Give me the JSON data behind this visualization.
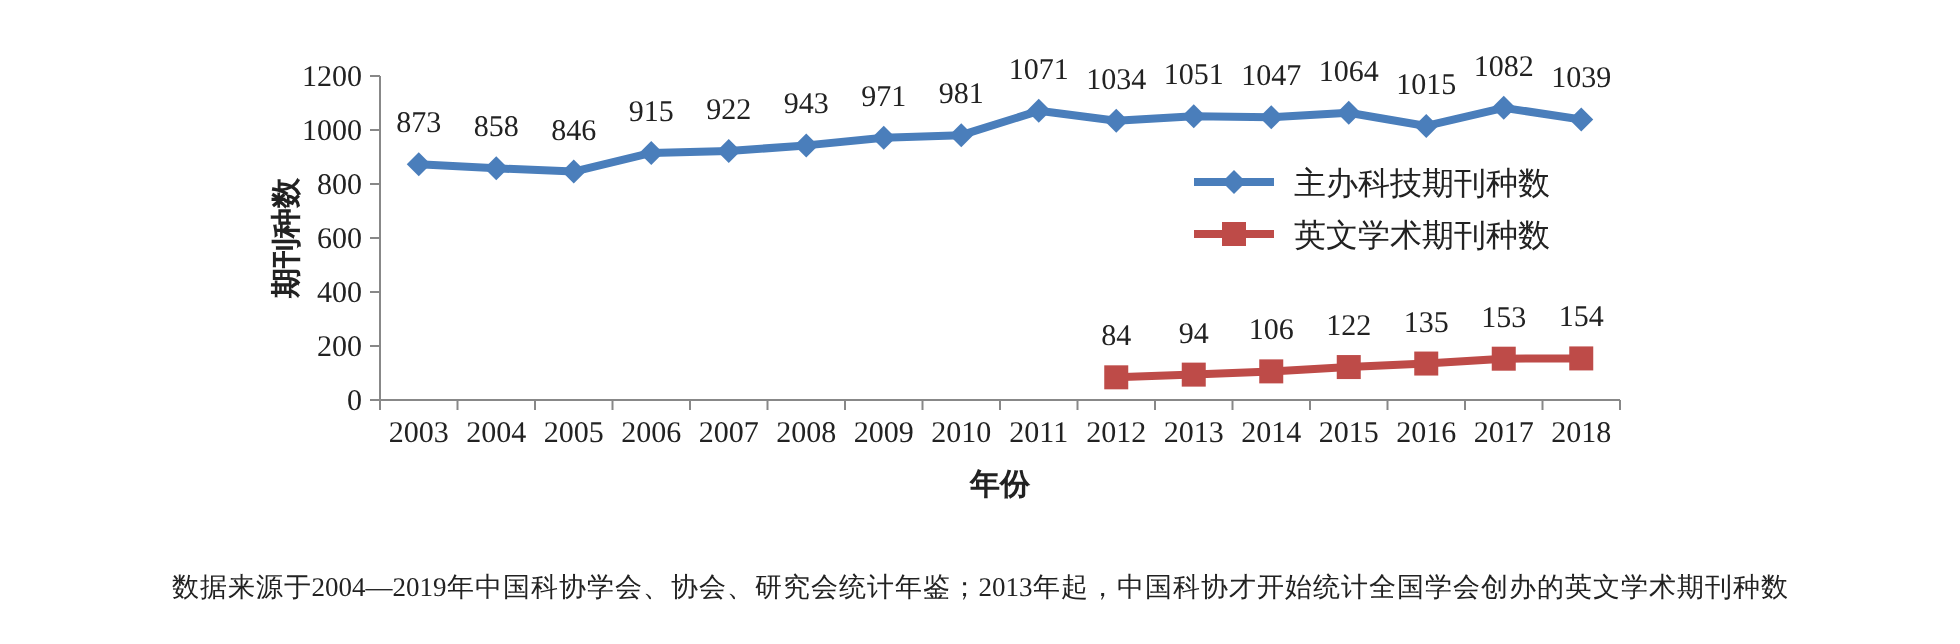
{
  "chart_data": {
    "type": "line",
    "xlabel": "年份",
    "ylabel": "期刊种数",
    "categories": [
      "2003",
      "2004",
      "2005",
      "2006",
      "2007",
      "2008",
      "2009",
      "2010",
      "2011",
      "2012",
      "2013",
      "2014",
      "2015",
      "2016",
      "2017",
      "2018"
    ],
    "series": [
      {
        "name": "主办科技期刊种数",
        "color": "#4a7ebb",
        "marker": "diamond",
        "values": [
          873,
          858,
          846,
          915,
          922,
          943,
          971,
          981,
          1071,
          1034,
          1051,
          1047,
          1064,
          1015,
          1082,
          1039
        ]
      },
      {
        "name": "英文学术期刊种数",
        "color": "#be4b48",
        "marker": "square",
        "values": [
          null,
          null,
          null,
          null,
          null,
          null,
          null,
          null,
          null,
          84,
          94,
          106,
          122,
          135,
          153,
          154
        ]
      }
    ],
    "ylim": [
      0,
      1200
    ],
    "yticks": [
      0,
      200,
      400,
      600,
      800,
      1000,
      1200
    ],
    "data_labels": true,
    "grid": false,
    "legend": "right",
    "line_style": "solid",
    "annotations": [
      "数据来源于2004—2019年中国科协学会、协会、研究会统计年鉴；2013年起，中国科协才开始统计全国学会创办的英文学术期刊种数"
    ]
  }
}
